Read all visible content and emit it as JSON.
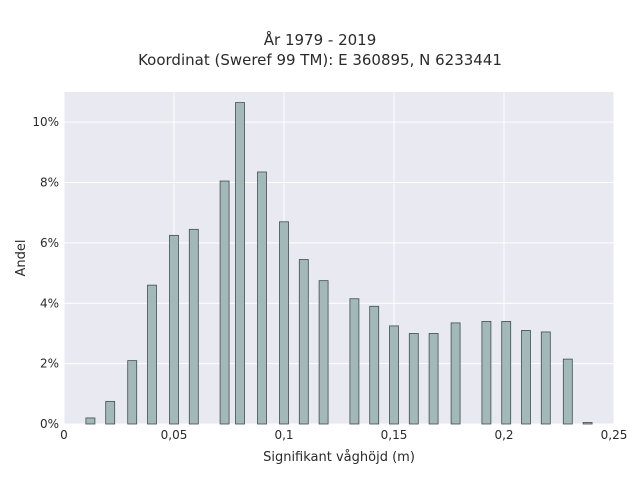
{
  "chart_data": {
    "type": "bar",
    "title_lines": [
      "År 1979 - 2019",
      "Koordinat (Sweref 99 TM): E 360895, N 6233441"
    ],
    "xlabel": "Signifikant våghöjd (m)",
    "ylabel": "Andel",
    "xlim": [
      0,
      0.25
    ],
    "ylim": [
      0,
      11
    ],
    "x_ticks": [
      0,
      0.05,
      0.1,
      0.15,
      0.2,
      0.25
    ],
    "x_tick_labels": [
      "0",
      "0,05",
      "0,1",
      "0,15",
      "0,2",
      "0,25"
    ],
    "y_ticks": [
      0,
      2,
      4,
      6,
      8,
      10
    ],
    "y_tick_labels": [
      "0%",
      "2%",
      "4%",
      "6%",
      "8%",
      "10%"
    ],
    "grid": true,
    "bar_color": "#a2b8b9",
    "bar_edge_color": "#3f4f50",
    "background_color": "#e9e9f1",
    "x": [
      0.012,
      0.021,
      0.031,
      0.04,
      0.05,
      0.059,
      0.073,
      0.08,
      0.09,
      0.1,
      0.109,
      0.118,
      0.132,
      0.141,
      0.15,
      0.159,
      0.168,
      0.178,
      0.192,
      0.201,
      0.21,
      0.219,
      0.229,
      0.238
    ],
    "values": [
      0.2,
      0.75,
      2.1,
      4.6,
      6.25,
      6.45,
      8.05,
      10.65,
      8.35,
      6.7,
      5.45,
      4.75,
      4.15,
      3.9,
      3.25,
      3.0,
      3.0,
      3.35,
      3.4,
      3.4,
      3.1,
      3.05,
      2.15,
      0.05
    ]
  }
}
